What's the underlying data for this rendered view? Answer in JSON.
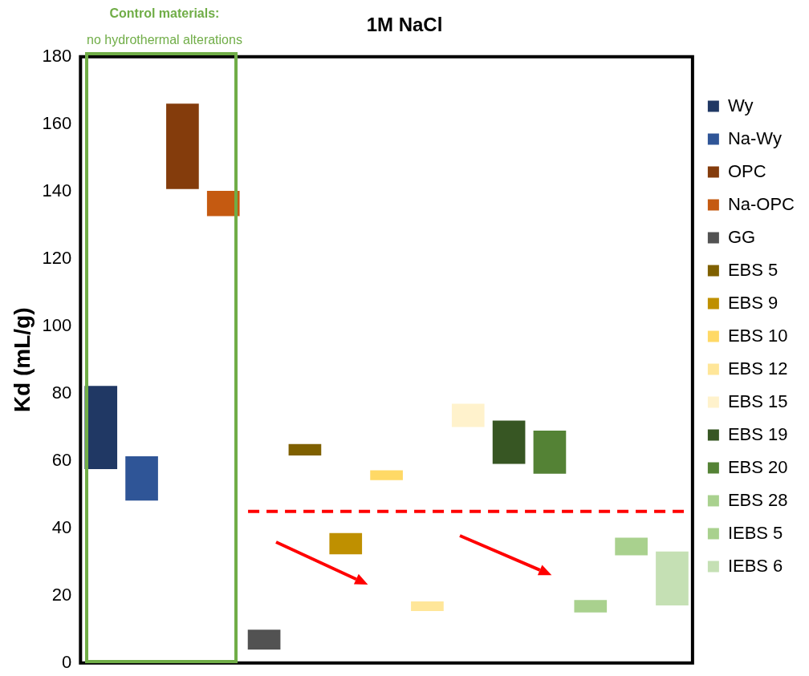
{
  "chart_data": {
    "type": "bar",
    "title": "1M NaCl",
    "ylabel": "Kd (mL/g)",
    "categories": [
      null,
      null,
      null,
      null,
      null,
      null,
      null,
      null,
      null,
      null,
      null,
      null,
      null,
      null,
      null
    ],
    "ylim": [
      0,
      180
    ],
    "yticks": [
      0,
      20,
      40,
      60,
      80,
      100,
      120,
      140,
      160,
      180
    ],
    "grid": false,
    "legend": "right",
    "tick_labels": "y",
    "stacked": true,
    "series": [
      {
        "name": "Wy",
        "color": "#203864",
        "values": [
          24.7,
          null,
          null,
          null,
          null,
          null,
          null,
          null,
          null,
          null,
          null,
          null,
          null,
          null,
          null
        ],
        "base": [
          57.6,
          null,
          null,
          null,
          null,
          null,
          null,
          null,
          null,
          null,
          null,
          null,
          null,
          null,
          null
        ]
      },
      {
        "name": "Na-Wy",
        "color": "#2f5597",
        "values": [
          null,
          13.2,
          null,
          null,
          null,
          null,
          null,
          null,
          null,
          null,
          null,
          null,
          null,
          null,
          null
        ],
        "base": [
          null,
          48.2,
          null,
          null,
          null,
          null,
          null,
          null,
          null,
          null,
          null,
          null,
          null,
          null,
          null
        ]
      },
      {
        "name": "OPC",
        "color": "#843c0c",
        "values": [
          null,
          null,
          25.4,
          null,
          null,
          null,
          null,
          null,
          null,
          null,
          null,
          null,
          null,
          null,
          null
        ],
        "base": [
          null,
          null,
          140.7,
          null,
          null,
          null,
          null,
          null,
          null,
          null,
          null,
          null,
          null,
          null,
          null
        ]
      },
      {
        "name": "Na-OPC",
        "color": "#c55a11",
        "values": [
          null,
          null,
          null,
          7.5,
          null,
          null,
          null,
          null,
          null,
          null,
          null,
          null,
          null,
          null,
          null
        ],
        "base": [
          null,
          null,
          null,
          132.7,
          null,
          null,
          null,
          null,
          null,
          null,
          null,
          null,
          null,
          null,
          null
        ]
      },
      {
        "name": "GG",
        "color": "#525252",
        "values": [
          null,
          null,
          null,
          null,
          5.9,
          null,
          null,
          null,
          null,
          null,
          null,
          null,
          null,
          null,
          null
        ],
        "base": [
          null,
          null,
          null,
          null,
          4.0,
          null,
          null,
          null,
          null,
          null,
          null,
          null,
          null,
          null,
          null
        ]
      },
      {
        "name": "EBS 5",
        "color": "#7f6000",
        "values": [
          null,
          null,
          null,
          null,
          null,
          3.4,
          null,
          null,
          null,
          null,
          null,
          null,
          null,
          null,
          null
        ],
        "base": [
          null,
          null,
          null,
          null,
          null,
          61.6,
          null,
          null,
          null,
          null,
          null,
          null,
          null,
          null,
          null
        ]
      },
      {
        "name": "EBS 9",
        "color": "#bf9000",
        "values": [
          null,
          null,
          null,
          null,
          null,
          null,
          6.3,
          null,
          null,
          null,
          null,
          null,
          null,
          null,
          null
        ],
        "base": [
          null,
          null,
          null,
          null,
          null,
          null,
          32.3,
          null,
          null,
          null,
          null,
          null,
          null,
          null,
          null
        ]
      },
      {
        "name": "EBS 10",
        "color": "#ffd966",
        "values": [
          null,
          null,
          null,
          null,
          null,
          null,
          null,
          2.9,
          null,
          null,
          null,
          null,
          null,
          null,
          null
        ],
        "base": [
          null,
          null,
          null,
          null,
          null,
          null,
          null,
          54.3,
          null,
          null,
          null,
          null,
          null,
          null,
          null
        ]
      },
      {
        "name": "EBS 12",
        "color": "#ffe699",
        "values": [
          null,
          null,
          null,
          null,
          null,
          null,
          null,
          null,
          2.9,
          null,
          null,
          null,
          null,
          null,
          null
        ],
        "base": [
          null,
          null,
          null,
          null,
          null,
          null,
          null,
          null,
          15.4,
          null,
          null,
          null,
          null,
          null,
          null
        ]
      },
      {
        "name": "EBS 15",
        "color": "#fff2cc",
        "values": [
          null,
          null,
          null,
          null,
          null,
          null,
          null,
          null,
          null,
          6.9,
          null,
          null,
          null,
          null,
          null
        ],
        "base": [
          null,
          null,
          null,
          null,
          null,
          null,
          null,
          null,
          null,
          70.1,
          null,
          null,
          null,
          null,
          null
        ]
      },
      {
        "name": "EBS 19",
        "color": "#375623",
        "values": [
          null,
          null,
          null,
          null,
          null,
          null,
          null,
          null,
          null,
          null,
          12.9,
          null,
          null,
          null,
          null
        ],
        "base": [
          null,
          null,
          null,
          null,
          null,
          null,
          null,
          null,
          null,
          null,
          59.1,
          null,
          null,
          null,
          null
        ]
      },
      {
        "name": "EBS 20",
        "color": "#548235",
        "values": [
          null,
          null,
          null,
          null,
          null,
          null,
          null,
          null,
          null,
          null,
          null,
          12.8,
          null,
          null,
          null
        ],
        "base": [
          null,
          null,
          null,
          null,
          null,
          null,
          null,
          null,
          null,
          null,
          null,
          56.2,
          null,
          null,
          null
        ]
      },
      {
        "name": "EBS 28",
        "color": "#a9d18e",
        "values": [
          null,
          null,
          null,
          null,
          null,
          null,
          null,
          null,
          null,
          null,
          null,
          null,
          3.7,
          null,
          null
        ],
        "base": [
          null,
          null,
          null,
          null,
          null,
          null,
          null,
          null,
          null,
          null,
          null,
          null,
          15.0,
          null,
          null
        ]
      },
      {
        "name": "IEBS 5",
        "color": "#a9d18e",
        "values": [
          null,
          null,
          null,
          null,
          null,
          null,
          null,
          null,
          null,
          null,
          null,
          null,
          null,
          5.2,
          null
        ],
        "base": [
          null,
          null,
          null,
          null,
          null,
          null,
          null,
          null,
          null,
          null,
          null,
          null,
          null,
          32.0,
          null
        ]
      },
      {
        "name": "IEBS 6",
        "color": "#c5e0b4",
        "values": [
          null,
          null,
          null,
          null,
          null,
          null,
          null,
          null,
          null,
          null,
          null,
          null,
          null,
          null,
          16.0
        ],
        "base": [
          null,
          null,
          null,
          null,
          null,
          null,
          null,
          null,
          null,
          null,
          null,
          null,
          null,
          null,
          17.1
        ]
      }
    ],
    "ref_lines": [
      {
        "axis": "y",
        "value": 45,
        "color": "#ff0000",
        "line_style": "dashed"
      }
    ],
    "annotations": [
      "Control materials:",
      "no hydrothermal  alterations"
    ]
  }
}
